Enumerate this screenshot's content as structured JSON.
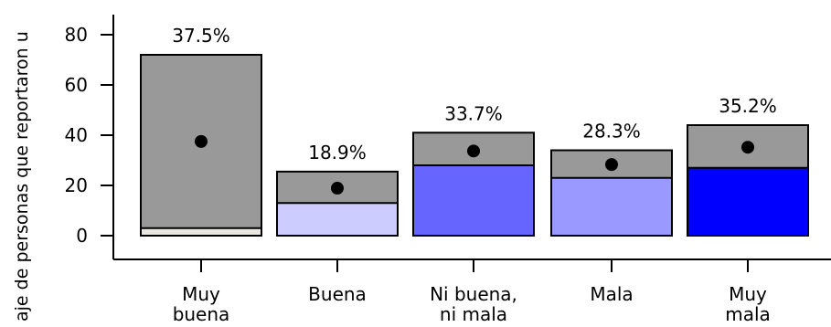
{
  "chart_data": {
    "type": "bar",
    "ylabel": "aje de personas que reportaron u",
    "yticks": [
      0,
      20,
      40,
      60,
      80
    ],
    "ylim": [
      -10,
      88
    ],
    "categories": [
      "Muy\nbuena",
      "Buena",
      "Ni buena,\nni mala",
      "Mala",
      "Muy\nmala"
    ],
    "series": [
      {
        "values": [
          3,
          13,
          28,
          23,
          27
        ]
      },
      {
        "values": [
          72,
          25.5,
          41,
          34,
          44
        ]
      }
    ],
    "point_values": [
      37.5,
      18.9,
      33.7,
      28.3,
      35.2
    ],
    "value_labels": [
      "37.5%",
      "18.9%",
      "33.7%",
      "28.3%",
      "35.2%"
    ],
    "colors": {
      "total_bar": "#999999",
      "sub_bars": [
        "#e8e8e0",
        "#ccccff",
        "#6666ff",
        "#9999ff",
        "#0000ff"
      ],
      "outline": "#000000",
      "point": "#000000"
    },
    "grid": false
  }
}
